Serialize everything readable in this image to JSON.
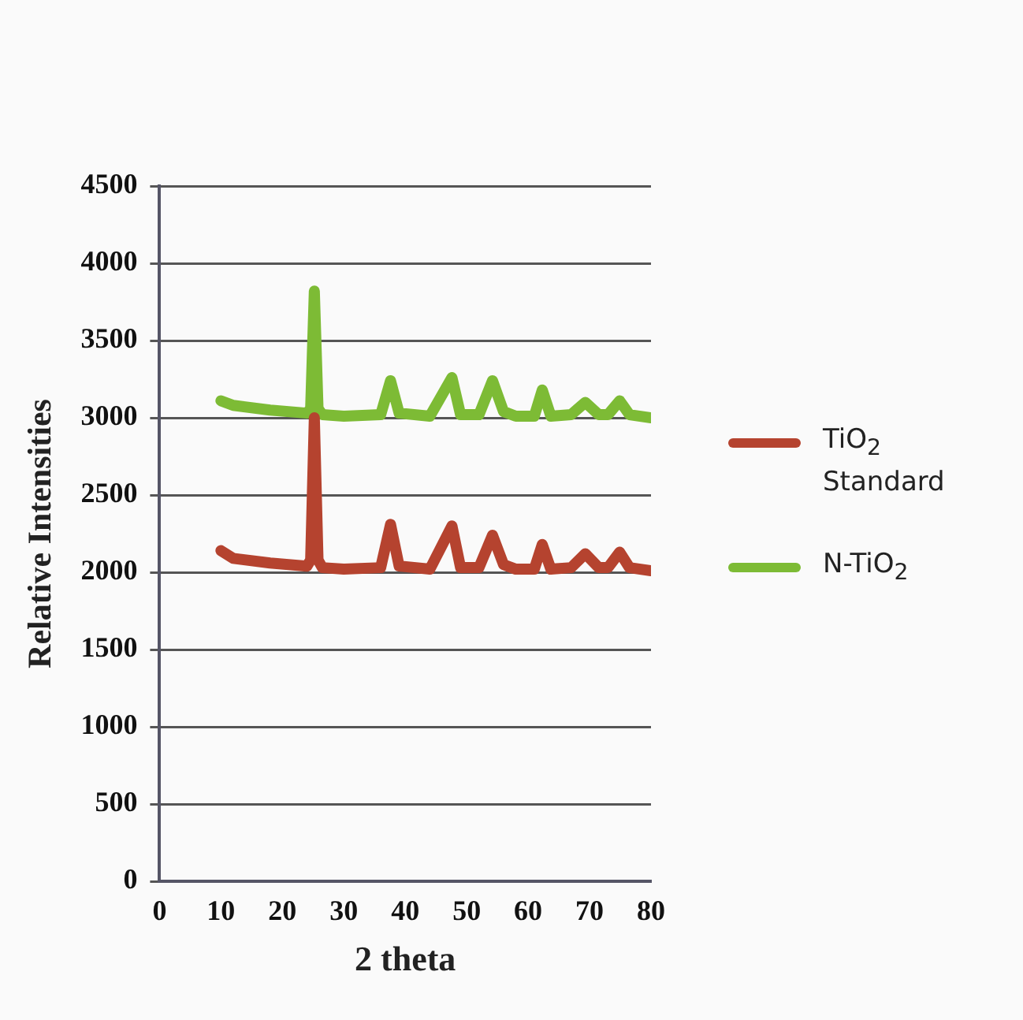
{
  "chart_data": {
    "type": "line",
    "xlabel": "2 theta",
    "ylabel": "Relative Intensities",
    "xlim": [
      0,
      80
    ],
    "xticks": [
      0,
      10,
      20,
      30,
      40,
      50,
      60,
      70,
      80
    ],
    "ylim": [
      0,
      4500
    ],
    "yticks": [
      0,
      500,
      1000,
      1500,
      2000,
      2500,
      3000,
      3500,
      4000,
      4500
    ],
    "grid": "y",
    "legend": "right",
    "marker": "none",
    "line_style": "solid",
    "series": [
      {
        "name": "TiO$_{2}$ Standard",
        "color": "#b5432f",
        "x": [
          10,
          12,
          18,
          24,
          24.6,
          25.2,
          25.8,
          26.5,
          30,
          36,
          37.6,
          39,
          44,
          47.6,
          49,
          52,
          54.2,
          56,
          58,
          61,
          62.3,
          63.7,
          67,
          69.3,
          71.5,
          73,
          74.9,
          76.5,
          80
        ],
        "values": [
          2140,
          2090,
          2060,
          2040,
          2080,
          3000,
          2080,
          2030,
          2020,
          2030,
          2310,
          2040,
          2020,
          2300,
          2030,
          2030,
          2240,
          2050,
          2020,
          2020,
          2180,
          2020,
          2030,
          2120,
          2030,
          2030,
          2130,
          2030,
          2010
        ]
      },
      {
        "name": "N-TiO$_{2}$",
        "color": "#7dbb35",
        "x": [
          10,
          12,
          18,
          24,
          24.6,
          25.2,
          25.8,
          26.5,
          30,
          36,
          37.6,
          39,
          44,
          47.6,
          49,
          52,
          54.2,
          56,
          58,
          61,
          62.3,
          63.7,
          67,
          69.3,
          71.5,
          73,
          74.9,
          76.5,
          80
        ],
        "values": [
          3110,
          3080,
          3050,
          3030,
          3060,
          3820,
          3060,
          3020,
          3010,
          3020,
          3240,
          3030,
          3010,
          3260,
          3020,
          3020,
          3240,
          3040,
          3010,
          3010,
          3180,
          3010,
          3020,
          3100,
          3020,
          3020,
          3110,
          3020,
          3000
        ]
      }
    ]
  }
}
